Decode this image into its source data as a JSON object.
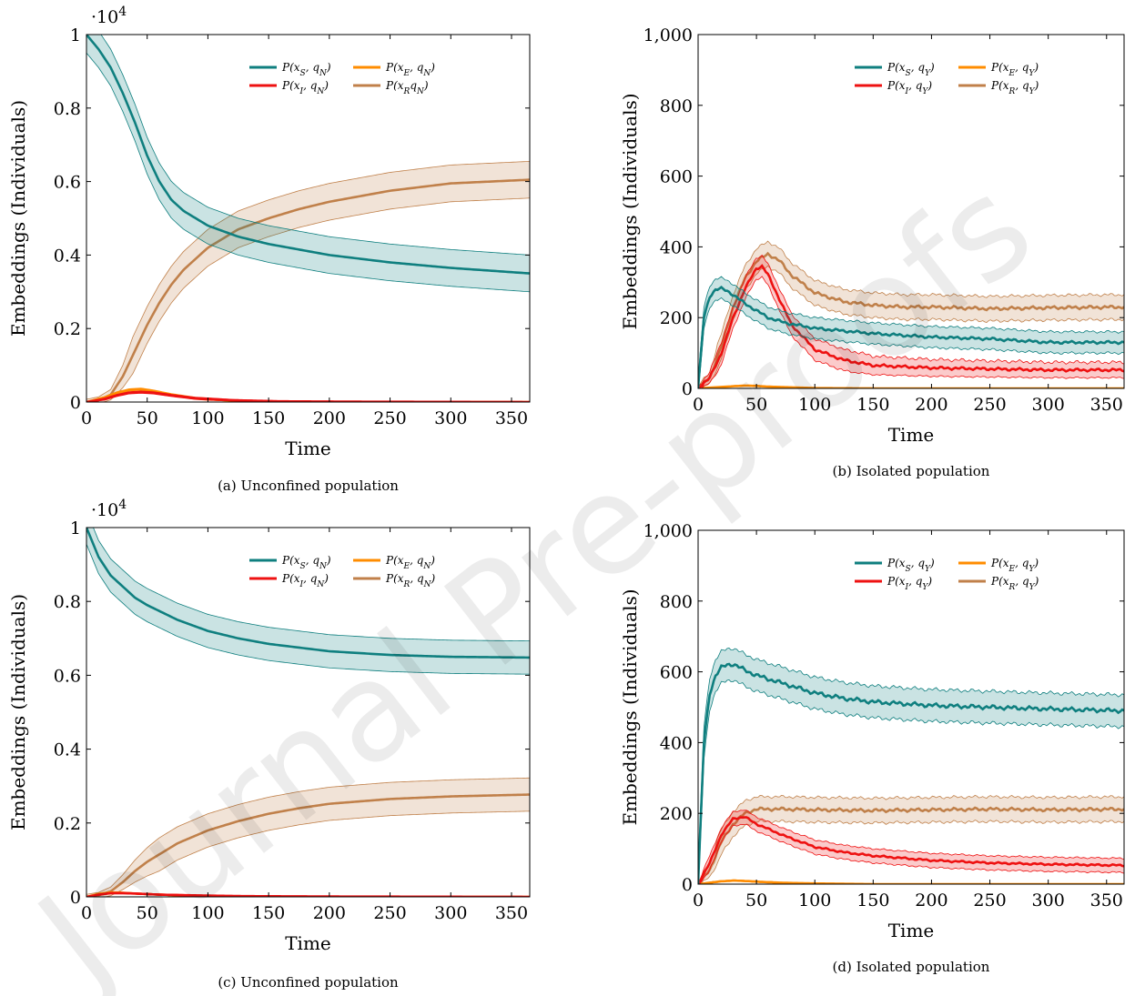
{
  "watermark": "Journal Pre-proofs",
  "chart_data": [
    {
      "type": "line",
      "caption": "(a) Unconfined population",
      "xlabel": "Time",
      "ylabel": "Embeddings (Individuals)",
      "xlim": [
        0,
        365
      ],
      "ylim": [
        0,
        1
      ],
      "multiplier": "·10",
      "multiplier_exp": "4",
      "xticks": [
        0,
        50,
        100,
        150,
        200,
        250,
        300,
        350
      ],
      "yticks": [
        0,
        0.2,
        0.4,
        0.6,
        0.8,
        1
      ],
      "ytick_labels": [
        "0",
        "0.2",
        "0.4",
        "0.6",
        "0.8",
        "1"
      ],
      "legend_position": "top-right",
      "series": [
        {
          "name": "P(xS, qN)",
          "color": "#0f7f7f",
          "band": 0.05,
          "x": [
            0,
            10,
            20,
            30,
            40,
            50,
            60,
            70,
            80,
            90,
            100,
            125,
            150,
            175,
            200,
            250,
            300,
            365
          ],
          "y": [
            1.0,
            0.96,
            0.91,
            0.84,
            0.76,
            0.67,
            0.6,
            0.55,
            0.52,
            0.5,
            0.48,
            0.45,
            0.43,
            0.415,
            0.4,
            0.38,
            0.365,
            0.35
          ]
        },
        {
          "name": "P(xE, qN)",
          "color": "#ff8c00",
          "band": 0.003,
          "x": [
            0,
            15,
            25,
            35,
            45,
            55,
            70,
            90,
            120,
            160,
            220,
            365
          ],
          "y": [
            0.0,
            0.012,
            0.025,
            0.033,
            0.035,
            0.03,
            0.02,
            0.01,
            0.004,
            0.001,
            0.0,
            0.0
          ]
        },
        {
          "name": "P(xI, qN)",
          "color": "#ee1111",
          "band": 0.003,
          "x": [
            0,
            15,
            25,
            35,
            45,
            55,
            70,
            90,
            120,
            160,
            220,
            365
          ],
          "y": [
            0.0,
            0.008,
            0.018,
            0.025,
            0.027,
            0.025,
            0.018,
            0.01,
            0.005,
            0.002,
            0.001,
            0.0
          ]
        },
        {
          "name": "P(xRqN)",
          "color": "#c0804a",
          "band": 0.05,
          "x": [
            0,
            10,
            20,
            30,
            40,
            50,
            60,
            70,
            80,
            90,
            100,
            125,
            150,
            175,
            200,
            250,
            300,
            365
          ],
          "y": [
            0.0,
            0.005,
            0.02,
            0.07,
            0.14,
            0.21,
            0.27,
            0.32,
            0.36,
            0.39,
            0.42,
            0.47,
            0.5,
            0.525,
            0.545,
            0.575,
            0.595,
            0.605
          ]
        }
      ]
    },
    {
      "type": "line",
      "caption": "(b) Isolated population",
      "xlabel": "Time",
      "ylabel": "Embeddings (Individuals)",
      "xlim": [
        0,
        365
      ],
      "ylim": [
        0,
        1000
      ],
      "xticks": [
        0,
        50,
        100,
        150,
        200,
        250,
        300,
        350
      ],
      "yticks": [
        0,
        200,
        400,
        600,
        800,
        1000
      ],
      "ytick_labels": [
        "0",
        "200",
        "400",
        "600",
        "800",
        "1,000"
      ],
      "legend_position": "top-right",
      "series": [
        {
          "name": "P(xS, qY)",
          "color": "#0f7f7f",
          "band": 30,
          "x": [
            0,
            5,
            10,
            15,
            20,
            25,
            30,
            40,
            50,
            60,
            75,
            100,
            150,
            200,
            250,
            300,
            365
          ],
          "y": [
            0,
            200,
            260,
            280,
            282,
            275,
            265,
            240,
            220,
            200,
            185,
            170,
            155,
            145,
            140,
            130,
            130
          ]
        },
        {
          "name": "P(xE, qY)",
          "color": "#ff8c00",
          "band": 1.5,
          "x": [
            0,
            10,
            20,
            30,
            40,
            50,
            60,
            80,
            100,
            150,
            365
          ],
          "y": [
            0,
            2,
            4,
            6,
            8,
            7,
            5,
            3,
            1,
            0,
            0
          ]
        },
        {
          "name": "P(xI, qY)",
          "color": "#ee1111",
          "band": 30,
          "x": [
            0,
            10,
            20,
            30,
            40,
            50,
            55,
            60,
            70,
            80,
            100,
            125,
            150,
            200,
            250,
            300,
            365
          ],
          "y": [
            0,
            30,
            100,
            200,
            280,
            340,
            345,
            320,
            250,
            180,
            110,
            80,
            65,
            58,
            55,
            52,
            52
          ]
        },
        {
          "name": "P(xR, qY)",
          "color": "#c0804a",
          "band": 35,
          "x": [
            0,
            10,
            20,
            30,
            40,
            50,
            60,
            70,
            80,
            100,
            125,
            150,
            175,
            200,
            250,
            300,
            365
          ],
          "y": [
            0,
            30,
            120,
            230,
            310,
            360,
            380,
            360,
            320,
            270,
            245,
            235,
            230,
            230,
            225,
            228,
            230
          ]
        }
      ]
    },
    {
      "type": "line",
      "caption": "(c) Unconfined population",
      "xlabel": "Time",
      "ylabel": "Embeddings (Individuals)",
      "xlim": [
        0,
        365
      ],
      "ylim": [
        0,
        1
      ],
      "multiplier": "·10",
      "multiplier_exp": "4",
      "xticks": [
        0,
        50,
        100,
        150,
        200,
        250,
        300,
        350
      ],
      "yticks": [
        0,
        0.2,
        0.4,
        0.6,
        0.8,
        1
      ],
      "ytick_labels": [
        "0",
        "0.2",
        "0.4",
        "0.6",
        "0.8",
        "1"
      ],
      "legend_position": "top-right",
      "series": [
        {
          "name": "P(xS, qN)",
          "color": "#0f7f7f",
          "band": 0.045,
          "x": [
            0,
            10,
            20,
            30,
            40,
            50,
            75,
            100,
            125,
            150,
            175,
            200,
            250,
            300,
            365
          ],
          "y": [
            1.0,
            0.92,
            0.87,
            0.84,
            0.81,
            0.79,
            0.75,
            0.72,
            0.7,
            0.685,
            0.675,
            0.665,
            0.655,
            0.65,
            0.648
          ]
        },
        {
          "name": "P(xE, qN)",
          "color": "#ff8c00",
          "band": 0.002,
          "x": [
            0,
            10,
            20,
            30,
            40,
            60,
            90,
            130,
            200,
            365
          ],
          "y": [
            0.0,
            0.008,
            0.012,
            0.011,
            0.009,
            0.006,
            0.003,
            0.001,
            0.0,
            0.0
          ]
        },
        {
          "name": "P(xI, qN)",
          "color": "#ee1111",
          "band": 0.002,
          "x": [
            0,
            10,
            20,
            30,
            40,
            60,
            90,
            130,
            200,
            365
          ],
          "y": [
            0.0,
            0.006,
            0.01,
            0.01,
            0.009,
            0.006,
            0.004,
            0.002,
            0.001,
            0.0
          ]
        },
        {
          "name": "P(xR, qN)",
          "color": "#c0804a",
          "band": 0.045,
          "x": [
            0,
            10,
            20,
            30,
            40,
            50,
            75,
            100,
            125,
            150,
            175,
            200,
            250,
            300,
            365
          ],
          "y": [
            0.0,
            0.004,
            0.015,
            0.04,
            0.07,
            0.095,
            0.145,
            0.18,
            0.205,
            0.225,
            0.24,
            0.252,
            0.265,
            0.272,
            0.277
          ]
        }
      ]
    },
    {
      "type": "line",
      "caption": "(d) Isolated population",
      "xlabel": "Time",
      "ylabel": "Embeddings (Individuals)",
      "xlim": [
        0,
        365
      ],
      "ylim": [
        0,
        1000
      ],
      "xticks": [
        0,
        50,
        100,
        150,
        200,
        250,
        300,
        350
      ],
      "yticks": [
        0,
        200,
        400,
        600,
        800,
        1000
      ],
      "ytick_labels": [
        "0",
        "200",
        "400",
        "600",
        "800",
        "1,000"
      ],
      "legend_position": "top-right",
      "series": [
        {
          "name": "P(xS, qY)",
          "color": "#0f7f7f",
          "band": 45,
          "x": [
            0,
            5,
            10,
            15,
            20,
            25,
            30,
            40,
            50,
            75,
            100,
            125,
            150,
            200,
            250,
            300,
            365
          ],
          "y": [
            0,
            400,
            540,
            590,
            612,
            620,
            622,
            605,
            590,
            565,
            540,
            525,
            515,
            505,
            500,
            495,
            490
          ]
        },
        {
          "name": "P(xE, qY)",
          "color": "#ff8c00",
          "band": 2,
          "x": [
            0,
            10,
            20,
            30,
            40,
            50,
            70,
            100,
            150,
            365
          ],
          "y": [
            0,
            4,
            8,
            10,
            9,
            7,
            4,
            2,
            0,
            0
          ]
        },
        {
          "name": "P(xI, qY)",
          "color": "#ee1111",
          "band": 20,
          "x": [
            0,
            10,
            20,
            30,
            40,
            50,
            75,
            100,
            125,
            150,
            200,
            250,
            300,
            365
          ],
          "y": [
            0,
            60,
            140,
            185,
            190,
            170,
            135,
            105,
            90,
            80,
            67,
            60,
            56,
            53
          ]
        },
        {
          "name": "P(xR, qY)",
          "color": "#c0804a",
          "band": 35,
          "x": [
            0,
            10,
            20,
            30,
            40,
            50,
            75,
            100,
            150,
            200,
            250,
            300,
            365
          ],
          "y": [
            0,
            40,
            120,
            170,
            200,
            212,
            212,
            210,
            208,
            210,
            212,
            210,
            212
          ]
        }
      ]
    }
  ]
}
